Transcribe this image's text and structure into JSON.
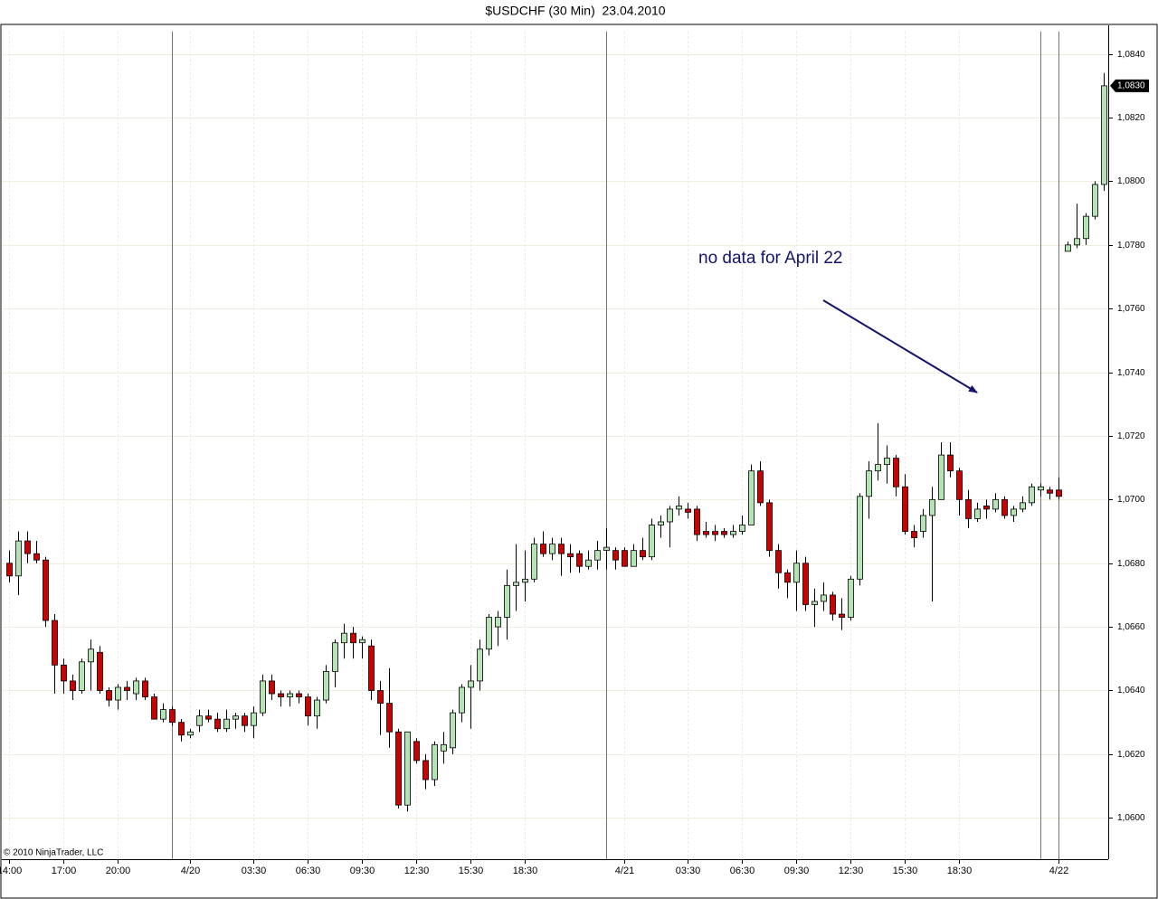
{
  "chart_data": {
    "type": "candlestick",
    "title": "$USDCHF (30 Min)  23.04.2010",
    "annotation": "no data for April 22",
    "copyright": "© 2010 NinjaTrader, LLC",
    "up_color": "#b4e4b4",
    "down_color": "#cc0000",
    "grid": true,
    "ylim": [
      1.0587,
      1.0849
    ],
    "yticks": [
      {
        "value": 1.06,
        "label": "1,0600"
      },
      {
        "value": 1.062,
        "label": "1,0620"
      },
      {
        "value": 1.064,
        "label": "1,0640"
      },
      {
        "value": 1.066,
        "label": "1,0660"
      },
      {
        "value": 1.068,
        "label": "1,0680"
      },
      {
        "value": 1.07,
        "label": "1,0700"
      },
      {
        "value": 1.072,
        "label": "1,0720"
      },
      {
        "value": 1.074,
        "label": "1,0740"
      },
      {
        "value": 1.076,
        "label": "1,0760"
      },
      {
        "value": 1.078,
        "label": "1,0780"
      },
      {
        "value": 1.08,
        "label": "1,0800"
      },
      {
        "value": 1.082,
        "label": "1,0820"
      },
      {
        "value": 1.084,
        "label": "1,0840"
      }
    ],
    "last_price": {
      "value": 1.083,
      "label": "1,0830"
    },
    "categories": [
      "14:00",
      null,
      null,
      null,
      null,
      null,
      "17:00",
      null,
      null,
      null,
      null,
      null,
      "20:00",
      null,
      null,
      null,
      null,
      null,
      null,
      null,
      "4/20",
      null,
      null,
      null,
      null,
      null,
      null,
      "03:30",
      null,
      null,
      null,
      null,
      null,
      "06:30",
      null,
      null,
      null,
      null,
      null,
      "09:30",
      null,
      null,
      null,
      null,
      null,
      "12:30",
      null,
      null,
      null,
      null,
      null,
      "15:30",
      null,
      null,
      null,
      null,
      null,
      "18:30",
      null,
      null,
      null,
      null,
      null,
      null,
      null,
      null,
      null,
      null,
      "4/21",
      null,
      null,
      null,
      null,
      null,
      null,
      "03:30",
      null,
      null,
      null,
      null,
      null,
      "06:30",
      null,
      null,
      null,
      null,
      null,
      "09:30",
      null,
      null,
      null,
      null,
      null,
      "12:30",
      null,
      null,
      null,
      null,
      null,
      "15:30",
      null,
      null,
      null,
      null,
      null,
      "18:30",
      null,
      null,
      null,
      null,
      null,
      null,
      null,
      null,
      null,
      null,
      "4/22",
      null,
      null,
      null,
      null,
      null
    ],
    "open": [
      1.068,
      1.0676,
      1.0687,
      1.0683,
      1.0681,
      1.0662,
      1.0648,
      1.0643,
      1.064,
      1.0649,
      1.0652,
      1.064,
      1.0637,
      1.0641,
      1.0639,
      1.0643,
      1.0638,
      1.0631,
      1.0634,
      1.063,
      1.0626,
      1.0629,
      1.0632,
      1.0631,
      1.0628,
      1.0631,
      1.0632,
      1.0629,
      1.0633,
      1.0643,
      1.0639,
      1.0638,
      1.0639,
      1.0638,
      1.0632,
      1.0637,
      1.0646,
      1.0655,
      1.0658,
      1.0655,
      1.0654,
      1.064,
      1.0636,
      1.0627,
      1.0604,
      1.0624,
      1.0618,
      1.0612,
      1.0621,
      1.0622,
      1.0633,
      1.0641,
      1.0643,
      1.0653,
      1.066,
      1.0663,
      1.0673,
      1.0674,
      1.0675,
      1.0686,
      1.0683,
      1.0686,
      1.0683,
      1.0683,
      1.0679,
      1.0681,
      1.0684,
      1.0684,
      1.0684,
      1.0679,
      1.0684,
      1.0682,
      1.0692,
      1.0693,
      1.0697,
      1.0697,
      1.0697,
      1.069,
      1.069,
      1.069,
      1.0689,
      1.069,
      1.0692,
      1.0709,
      1.0699,
      1.0684,
      1.0677,
      1.0674,
      1.068,
      1.0667,
      1.0668,
      1.067,
      1.0664,
      1.0663,
      1.0675,
      1.0701,
      1.0709,
      1.0711,
      1.0713,
      1.0704,
      1.069,
      1.069,
      1.0695,
      1.07,
      1.0714,
      1.0709,
      1.07,
      1.0694,
      1.0698,
      1.0697,
      1.07,
      1.0695,
      1.0697,
      1.0699,
      1.0703,
      1.0703,
      1.0703,
      1.0778,
      1.078,
      1.0782,
      1.0789,
      1.0799
    ],
    "high": [
      1.0684,
      1.069,
      1.069,
      1.0687,
      1.0682,
      1.0664,
      1.065,
      1.0645,
      1.065,
      1.0656,
      1.0654,
      1.0641,
      1.0642,
      1.0643,
      1.0644,
      1.0644,
      1.0639,
      1.0636,
      1.0635,
      1.0631,
      1.0628,
      1.0634,
      1.0634,
      1.0633,
      1.0634,
      1.0633,
      1.0633,
      1.0635,
      1.0645,
      1.0645,
      1.064,
      1.064,
      1.064,
      1.0639,
      1.0638,
      1.0648,
      1.0656,
      1.0661,
      1.066,
      1.0657,
      1.0656,
      1.0643,
      1.0647,
      1.0628,
      1.0627,
      1.0625,
      1.062,
      1.0624,
      1.0627,
      1.0634,
      1.0642,
      1.0648,
      1.0656,
      1.0664,
      1.0665,
      1.0678,
      1.0686,
      1.0684,
      1.0688,
      1.069,
      1.0688,
      1.0688,
      1.0686,
      1.0684,
      1.0684,
      1.0687,
      1.0691,
      1.0685,
      1.0685,
      1.0686,
      1.0688,
      1.0694,
      1.0695,
      1.0698,
      1.0701,
      1.0699,
      1.0698,
      1.0693,
      1.0692,
      1.0691,
      1.0692,
      1.0695,
      1.0711,
      1.0712,
      1.07,
      1.0686,
      1.0678,
      1.0684,
      1.0682,
      1.0672,
      1.0674,
      1.0671,
      1.0669,
      1.0676,
      1.0702,
      1.0712,
      1.0724,
      1.0717,
      1.0714,
      1.0708,
      1.0692,
      1.0697,
      1.0704,
      1.0718,
      1.0718,
      1.071,
      1.0703,
      1.0699,
      1.07,
      1.0702,
      1.0701,
      1.0698,
      1.0701,
      1.0705,
      1.0705,
      1.0704,
      1.0707,
      1.0781,
      1.0793,
      1.079,
      1.08,
      1.0834
    ],
    "low": [
      1.0674,
      1.067,
      1.068,
      1.068,
      1.066,
      1.0639,
      1.0639,
      1.0637,
      1.0639,
      1.064,
      1.0639,
      1.0635,
      1.0634,
      1.0637,
      1.0637,
      1.0637,
      1.0631,
      1.063,
      1.0629,
      1.0624,
      1.0625,
      1.0627,
      1.063,
      1.0627,
      1.0627,
      1.0628,
      1.0627,
      1.0625,
      1.0632,
      1.0637,
      1.0635,
      1.0635,
      1.0636,
      1.0629,
      1.0628,
      1.0636,
      1.0641,
      1.065,
      1.065,
      1.065,
      1.0637,
      1.0626,
      1.0622,
      1.0603,
      1.0602,
      1.0617,
      1.0609,
      1.061,
      1.0617,
      1.062,
      1.063,
      1.0628,
      1.064,
      1.0651,
      1.0654,
      1.0656,
      1.0665,
      1.0668,
      1.0674,
      1.0682,
      1.0681,
      1.0676,
      1.0677,
      1.0677,
      1.0678,
      1.0678,
      1.0678,
      1.0678,
      1.0679,
      1.0679,
      1.0681,
      1.0681,
      1.0688,
      1.0685,
      1.0695,
      1.0694,
      1.0687,
      1.0688,
      1.0687,
      1.0688,
      1.0688,
      1.0689,
      1.0692,
      1.0698,
      1.0682,
      1.0672,
      1.0669,
      1.0665,
      1.0665,
      1.066,
      1.0665,
      1.0662,
      1.0659,
      1.0662,
      1.0673,
      1.0694,
      1.0706,
      1.0705,
      1.0701,
      1.0689,
      1.0685,
      1.0688,
      1.0668,
      1.07,
      1.0707,
      1.0695,
      1.0691,
      1.0693,
      1.0694,
      1.0696,
      1.0694,
      1.0693,
      1.0696,
      1.0698,
      1.0701,
      1.07,
      1.07,
      1.0778,
      1.0779,
      1.078,
      1.0788,
      1.0797
    ],
    "close": [
      1.0676,
      1.0687,
      1.0683,
      1.0681,
      1.0662,
      1.0648,
      1.0643,
      1.064,
      1.0649,
      1.0653,
      1.064,
      1.0637,
      1.0641,
      1.064,
      1.0643,
      1.0638,
      1.0631,
      1.0634,
      1.063,
      1.0626,
      1.0627,
      1.0632,
      1.0631,
      1.0628,
      1.0631,
      1.0632,
      1.0629,
      1.0633,
      1.0643,
      1.0639,
      1.0638,
      1.0639,
      1.0638,
      1.0632,
      1.0637,
      1.0646,
      1.0655,
      1.0658,
      1.0655,
      1.0656,
      1.064,
      1.0636,
      1.0627,
      1.0604,
      1.0627,
      1.0618,
      1.0612,
      1.0623,
      1.0623,
      1.0633,
      1.0641,
      1.0643,
      1.0653,
      1.0663,
      1.0663,
      1.0673,
      1.0674,
      1.0675,
      1.0686,
      1.0683,
      1.0686,
      1.0683,
      1.0682,
      1.0679,
      1.0681,
      1.0684,
      1.0685,
      1.0681,
      1.0679,
      1.0684,
      1.0682,
      1.0692,
      1.0693,
      1.0697,
      1.0698,
      1.0696,
      1.0689,
      1.0689,
      1.0689,
      1.0689,
      1.069,
      1.0692,
      1.0709,
      1.0699,
      1.0684,
      1.0677,
      1.0674,
      1.068,
      1.0667,
      1.0668,
      1.067,
      1.0664,
      1.0663,
      1.0675,
      1.0701,
      1.0709,
      1.0711,
      1.0713,
      1.0704,
      1.069,
      1.0688,
      1.0695,
      1.07,
      1.0714,
      1.0709,
      1.07,
      1.0694,
      1.0697,
      1.0697,
      1.07,
      1.0695,
      1.0697,
      1.0699,
      1.0704,
      1.0704,
      1.0702,
      1.0701,
      1.078,
      1.0782,
      1.0789,
      1.0799,
      1.083
    ]
  }
}
